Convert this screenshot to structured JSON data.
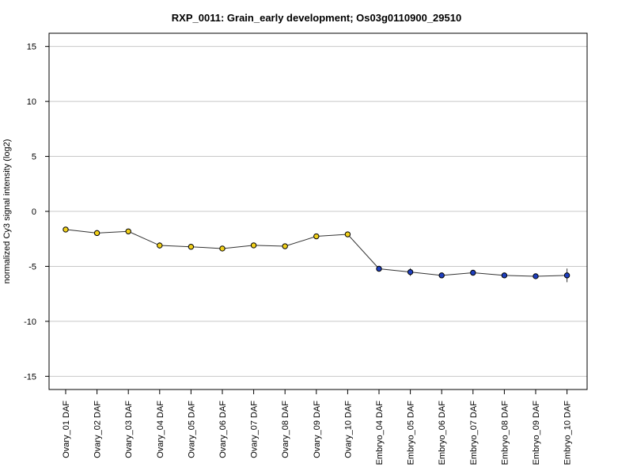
{
  "chart_data": {
    "type": "line",
    "title": "RXP_0011: Grain_early development; Os03g0110900_29510",
    "xlabel": "",
    "ylabel": "normalized Cy3 signal intensity (log2)",
    "ylim": [
      -16.2,
      16.2
    ],
    "yticks": [
      -15,
      -10,
      -5,
      0,
      5,
      10,
      15
    ],
    "grid": true,
    "categories": [
      "Ovary_01 DAF",
      "Ovary_02 DAF",
      "Ovary_03 DAF",
      "Ovary_04 DAF",
      "Ovary_05 DAF",
      "Ovary_06 DAF",
      "Ovary_07 DAF",
      "Ovary_08 DAF",
      "Ovary_09 DAF",
      "Ovary_10 DAF",
      "Embryo_04 DAF",
      "Embryo_05 DAF",
      "Embryo_06 DAF",
      "Embryo_07 DAF",
      "Embryo_08 DAF",
      "Embryo_09 DAF",
      "Embryo_10 DAF"
    ],
    "values": [
      -1.65,
      -1.97,
      -1.82,
      -3.1,
      -3.22,
      -3.38,
      -3.09,
      -3.17,
      -2.27,
      -2.09,
      -5.22,
      -5.52,
      -5.82,
      -5.58,
      -5.82,
      -5.9,
      -5.82
    ],
    "errors": [
      0.1,
      0.12,
      0.12,
      0.28,
      0.15,
      0.12,
      0.12,
      0.12,
      0.12,
      0.15,
      0.12,
      0.35,
      0.12,
      0.12,
      0.12,
      0.22,
      0.62
    ],
    "point_colors": [
      "#f2d11b",
      "#f2d11b",
      "#f2d11b",
      "#f2d11b",
      "#f2d11b",
      "#f2d11b",
      "#f2d11b",
      "#f2d11b",
      "#f2d11b",
      "#f2d11b",
      "#1e3fbf",
      "#1e3fbf",
      "#1e3fbf",
      "#1e3fbf",
      "#1e3fbf",
      "#1e3fbf",
      "#1e3fbf"
    ],
    "line_color": "#333333"
  }
}
